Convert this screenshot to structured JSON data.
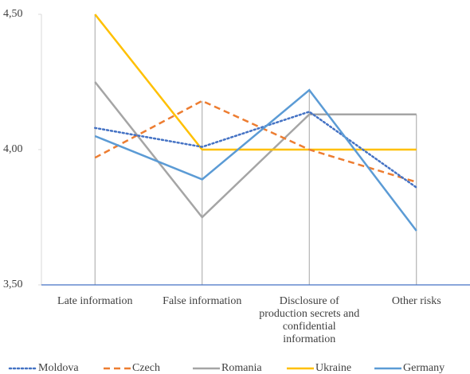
{
  "chart_data": {
    "type": "line",
    "categories": [
      "Late information",
      "False information",
      "Disclosure of production secrets and confidential information",
      "Other risks"
    ],
    "series": [
      {
        "name": "Moldova",
        "color": "#4472c4",
        "dash": "dotted",
        "values": [
          4.08,
          4.01,
          4.14,
          3.86
        ]
      },
      {
        "name": "Czech",
        "color": "#ed7d31",
        "dash": "dashed",
        "values": [
          3.97,
          4.18,
          4.0,
          3.88
        ]
      },
      {
        "name": "Romania",
        "color": "#a5a5a5",
        "dash": "solid",
        "values": [
          4.25,
          3.75,
          4.13,
          4.13
        ]
      },
      {
        "name": "Ukraine",
        "color": "#ffc000",
        "dash": "solid",
        "values": [
          4.5,
          4.0,
          4.0,
          4.0
        ]
      },
      {
        "name": "Germany",
        "color": "#5b9bd5",
        "dash": "solid",
        "values": [
          4.05,
          3.89,
          4.22,
          3.7
        ]
      }
    ],
    "ylim": [
      3.5,
      4.5
    ],
    "yticks": [
      {
        "value": 3.5,
        "label": "3,50"
      },
      {
        "value": 4,
        "label": "4,00"
      },
      {
        "value": 4.5,
        "label": "4,50"
      }
    ],
    "drop_lines": true,
    "legend": "bottom"
  }
}
